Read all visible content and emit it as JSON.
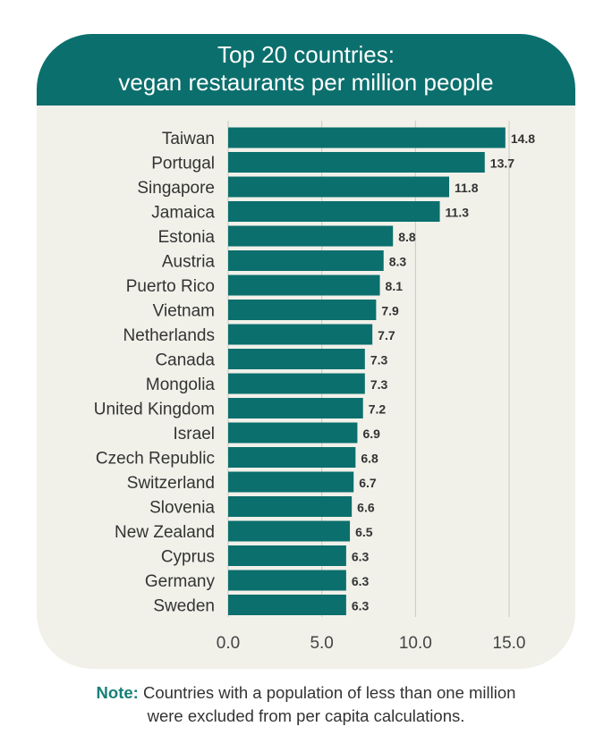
{
  "chart_data": {
    "type": "bar",
    "orientation": "horizontal",
    "title": "Top 20 countries:",
    "subtitle": "vegan restaurants per million people",
    "categories": [
      "Taiwan",
      "Portugal",
      "Singapore",
      "Jamaica",
      "Estonia",
      "Austria",
      "Puerto Rico",
      "Vietnam",
      "Netherlands",
      "Canada",
      "Mongolia",
      "United Kingdom",
      "Israel",
      "Czech Republic",
      "Switzerland",
      "Slovenia",
      "New Zealand",
      "Cyprus",
      "Germany",
      "Sweden"
    ],
    "values": [
      14.8,
      13.7,
      11.8,
      11.3,
      8.8,
      8.3,
      8.1,
      7.9,
      7.7,
      7.3,
      7.3,
      7.2,
      6.9,
      6.8,
      6.7,
      6.6,
      6.5,
      6.3,
      6.3,
      6.3
    ],
    "value_labels": [
      "14.8",
      "13.7",
      "11.8",
      "11.3",
      "8.8",
      "8.3",
      "8.1",
      "7.9",
      "7.7",
      "7.3",
      "7.3",
      "7.2",
      "6.9",
      "6.8",
      "6.7",
      "6.6",
      "6.5",
      "6.3",
      "6.3",
      "6.3"
    ],
    "xticks": [
      0,
      5,
      10,
      15
    ],
    "xtick_labels": [
      "0.0",
      "5.0",
      "10.0",
      "15.0"
    ],
    "xlim": [
      0,
      15
    ],
    "grid": true,
    "xlabel": "",
    "ylabel": "",
    "colors": {
      "bar": "#0b6f6d",
      "header": "#0b6f6d",
      "background": "#f1f1ea",
      "note_label": "#177f76"
    }
  },
  "note": {
    "label": "Note:",
    "line1": "Countries with a population of less than one million",
    "line2": "were excluded from per capita calculations."
  }
}
